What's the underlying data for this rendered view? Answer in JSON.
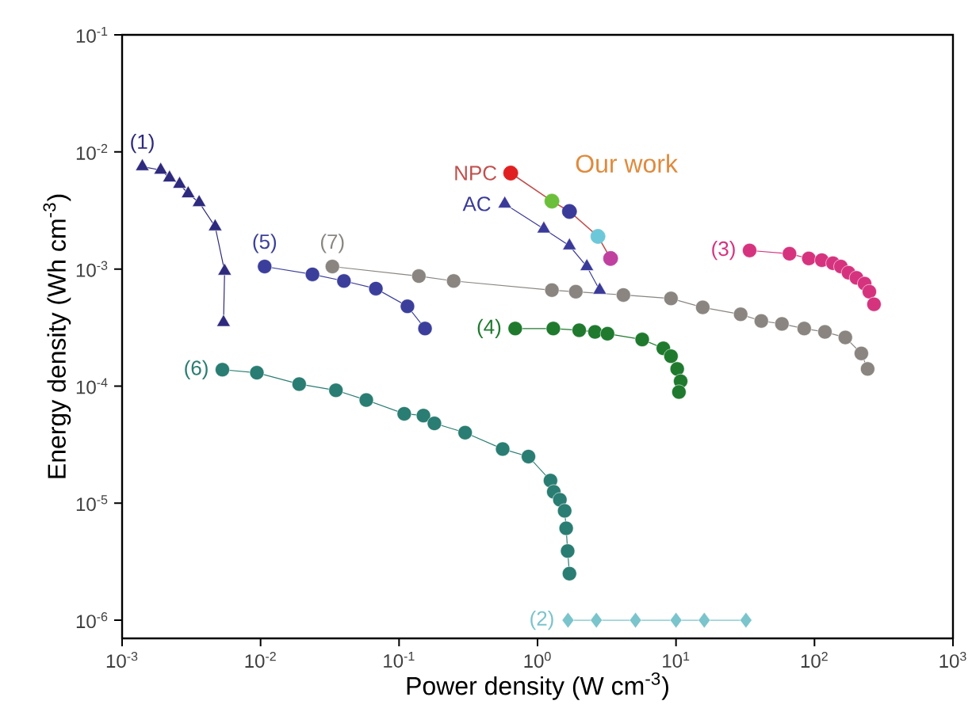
{
  "chart_data": {
    "type": "line",
    "xlabel": "Power density (W cm$^{-3}$)",
    "ylabel": "Energy density (Wh cm$^{-3}$)",
    "log": "xy",
    "xlim": [
      0.001,
      1000
    ],
    "ylim": [
      7e-07,
      0.1
    ],
    "xticks": [
      {
        "value": 0.001,
        "label": "10$^{-3}$"
      },
      {
        "value": 0.01,
        "label": "10$^{-2}$"
      },
      {
        "value": 0.1,
        "label": "10$^{-1}$"
      },
      {
        "value": 1,
        "label": "10$^{0}$"
      },
      {
        "value": 10,
        "label": "10$^{1}$"
      },
      {
        "value": 100,
        "label": "10$^{2}$"
      },
      {
        "value": 1000,
        "label": "10$^{3}$"
      }
    ],
    "yticks": [
      {
        "value": 1e-06,
        "label": "10$^{-6}$"
      },
      {
        "value": 1e-05,
        "label": "10$^{-5}$"
      },
      {
        "value": 0.0001,
        "label": "10$^{-4}$"
      },
      {
        "value": 0.001,
        "label": "10$^{-3}$"
      },
      {
        "value": 0.01,
        "label": "10$^{-2}$"
      },
      {
        "value": 0.1,
        "label": "10$^{-1}$"
      }
    ],
    "annotations": [
      "Our work"
    ],
    "series": [
      {
        "name": "(1)",
        "color": "#2e2a7e",
        "marker": "triangle",
        "x": [
          0.0014,
          0.0019,
          0.0022,
          0.0026,
          0.003,
          0.0036,
          0.0047,
          0.0055,
          0.0054
        ],
        "values": [
          0.0075,
          0.007,
          0.006,
          0.0053,
          0.0044,
          0.0037,
          0.0023,
          0.00096,
          0.00035
        ]
      },
      {
        "name": "(2)",
        "color": "#7ac4cc",
        "marker": "diamond",
        "x": [
          1.66,
          2.66,
          5.1,
          10,
          16,
          32
        ],
        "values": [
          1e-06,
          1e-06,
          1e-06,
          1e-06,
          1e-06,
          1e-06
        ]
      },
      {
        "name": "(3)",
        "color": "#d6337f",
        "marker": "circle",
        "x": [
          34,
          66,
          91,
          113,
          136,
          155,
          176,
          201,
          230,
          249,
          269
        ],
        "values": [
          0.00144,
          0.00135,
          0.00123,
          0.00119,
          0.00112,
          0.00105,
          0.00093,
          0.00084,
          0.00075,
          0.00064,
          0.0005
        ]
      },
      {
        "name": "(4)",
        "color": "#1f7a2e",
        "marker": "circle",
        "x": [
          0.69,
          1.3,
          2.0,
          2.6,
          3.2,
          5.7,
          8.1,
          9.2,
          10.2,
          10.8,
          10.5
        ],
        "values": [
          0.00031,
          0.00031,
          0.0003,
          0.00029,
          0.00028,
          0.00025,
          0.00021,
          0.00018,
          0.00014,
          0.00011,
          8.9e-05
        ]
      },
      {
        "name": "(5)",
        "color": "#3b3f9b",
        "marker": "circle",
        "x": [
          0.0107,
          0.0237,
          0.04,
          0.068,
          0.115,
          0.154
        ],
        "values": [
          0.00105,
          0.0009,
          0.00079,
          0.00068,
          0.00048,
          0.00031
        ]
      },
      {
        "name": "(6)",
        "color": "#2a7d72",
        "marker": "circle",
        "x": [
          0.0053,
          0.0094,
          0.019,
          0.035,
          0.058,
          0.109,
          0.15,
          0.18,
          0.3,
          0.56,
          0.86,
          1.24,
          1.31,
          1.45,
          1.57,
          1.61,
          1.65,
          1.7
        ],
        "values": [
          0.000138,
          0.00013,
          0.000104,
          9.2e-05,
          7.6e-05,
          5.8e-05,
          5.6e-05,
          4.8e-05,
          4e-05,
          2.9e-05,
          2.5e-05,
          1.56e-05,
          1.25e-05,
          1.07e-05,
          8.6e-06,
          6.1e-06,
          3.9e-06,
          2.5e-06
        ]
      },
      {
        "name": "(7)",
        "color": "#8a8580",
        "marker": "circle",
        "x": [
          0.033,
          0.139,
          0.248,
          1.27,
          1.89,
          4.17,
          9.2,
          15.6,
          29.3,
          41.3,
          58.2,
          84.3,
          119,
          167,
          218,
          242
        ],
        "values": [
          0.00105,
          0.00087,
          0.00079,
          0.00066,
          0.00064,
          0.0006,
          0.00056,
          0.00047,
          0.00041,
          0.00036,
          0.00034,
          0.00031,
          0.00029,
          0.00026,
          0.00019,
          0.00014
        ]
      },
      {
        "name": "NPC",
        "color": "#c0504d",
        "marker": "circle",
        "colors": [
          "#e02020",
          "#6bbf3a",
          "#3a3a9a",
          "#6cc8d8",
          "#c040a0"
        ],
        "x": [
          0.64,
          1.27,
          1.7,
          2.73,
          3.37
        ],
        "values": [
          0.0066,
          0.0038,
          0.0031,
          0.0019,
          0.00123
        ]
      },
      {
        "name": "AC",
        "color": "#3a3a9a",
        "marker": "triangle",
        "x": [
          0.58,
          1.11,
          1.7,
          2.27,
          2.81
        ],
        "values": [
          0.0036,
          0.0022,
          0.00158,
          0.00105,
          0.00066
        ]
      }
    ]
  }
}
